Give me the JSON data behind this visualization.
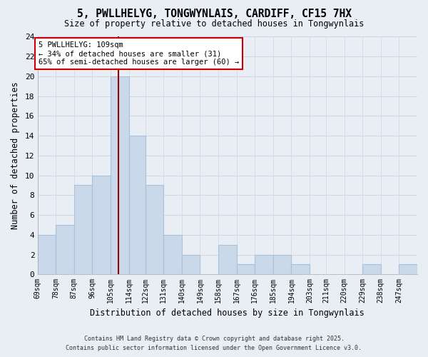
{
  "title": "5, PWLLHELYG, TONGWYNLAIS, CARDIFF, CF15 7HX",
  "subtitle": "Size of property relative to detached houses in Tongwynlais",
  "xlabel": "Distribution of detached houses by size in Tongwynlais",
  "ylabel": "Number of detached properties",
  "bin_labels": [
    "69sqm",
    "78sqm",
    "87sqm",
    "96sqm",
    "105sqm",
    "114sqm",
    "122sqm",
    "131sqm",
    "140sqm",
    "149sqm",
    "158sqm",
    "167sqm",
    "176sqm",
    "185sqm",
    "194sqm",
    "203sqm",
    "211sqm",
    "220sqm",
    "229sqm",
    "238sqm",
    "247sqm"
  ],
  "bin_edges": [
    69,
    78,
    87,
    96,
    105,
    114,
    122,
    131,
    140,
    149,
    158,
    167,
    176,
    185,
    194,
    203,
    211,
    220,
    229,
    238,
    247,
    256
  ],
  "counts": [
    4,
    5,
    9,
    10,
    20,
    14,
    9,
    4,
    2,
    0,
    3,
    1,
    2,
    2,
    1,
    0,
    0,
    0,
    1,
    0,
    1
  ],
  "bar_color": "#c9d9ea",
  "bar_edge_color": "#a8c0d8",
  "grid_color": "#ccd8e4",
  "property_line_x": 109,
  "property_line_color": "#990000",
  "annotation_line1": "5 PWLLHELYG: 109sqm",
  "annotation_line2": "← 34% of detached houses are smaller (31)",
  "annotation_line3": "65% of semi-detached houses are larger (60) →",
  "annotation_box_color": "#ffffff",
  "annotation_box_edge": "#cc0000",
  "ylim": [
    0,
    24
  ],
  "yticks": [
    0,
    2,
    4,
    6,
    8,
    10,
    12,
    14,
    16,
    18,
    20,
    22,
    24
  ],
  "footer_line1": "Contains HM Land Registry data © Crown copyright and database right 2025.",
  "footer_line2": "Contains public sector information licensed under the Open Government Licence v3.0.",
  "bg_color": "#e8eef4"
}
